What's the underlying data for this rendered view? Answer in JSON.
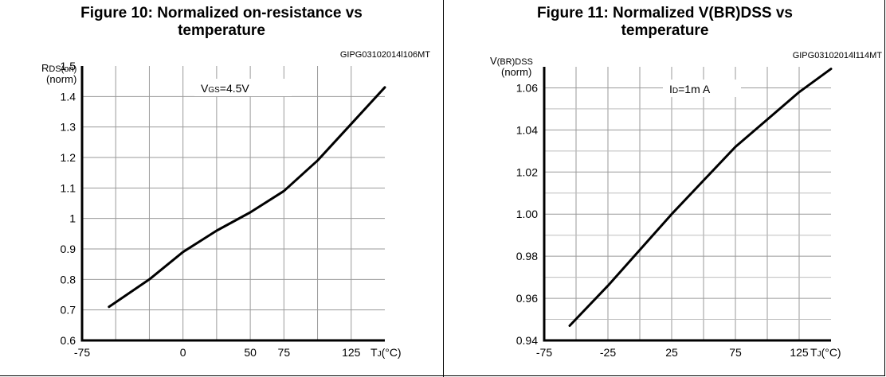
{
  "figures": [
    {
      "title_line1": "Figure 10: Normalized on-resistance vs",
      "title_line2": "temperature",
      "code": "GIPG03102014l106MT"
    },
    {
      "title_line1": "Figure 11: Normalized V(BR)DSS vs",
      "title_line2": "temperature",
      "code": "GIPG03102014l114MT"
    }
  ],
  "chart_data": [
    {
      "type": "line",
      "title": "Figure 10: Normalized on-resistance vs temperature",
      "ylabel": {
        "main": "R",
        "sub": "DS(on)",
        "unit": "(norm)"
      },
      "xlabel": {
        "main": "T",
        "sub": "J",
        "rest": "(°C)"
      },
      "annotation": {
        "main": "V",
        "sub": "GS",
        "rest": "=4.5V"
      },
      "ylim": [
        0.6,
        1.5
      ],
      "yticks": [
        {
          "v": 0.6,
          "label": "0.6"
        },
        {
          "v": 0.7,
          "label": "0.7"
        },
        {
          "v": 0.8,
          "label": "0.8"
        },
        {
          "v": 0.9,
          "label": "0.9"
        },
        {
          "v": 1.0,
          "label": "1"
        },
        {
          "v": 1.1,
          "label": "1.1"
        },
        {
          "v": 1.2,
          "label": "1.2"
        },
        {
          "v": 1.3,
          "label": "1.3"
        },
        {
          "v": 1.4,
          "label": "1.4"
        },
        {
          "v": 1.5,
          "label": "1.5"
        }
      ],
      "xlim": [
        -75,
        150
      ],
      "xticks": [
        {
          "v": -75,
          "label": "-75"
        },
        {
          "v": 0,
          "label": "0"
        },
        {
          "v": 50,
          "label": "50"
        },
        {
          "v": 75,
          "label": "75"
        },
        {
          "v": 125,
          "label": "125"
        }
      ],
      "xgrid": [
        -50,
        -25,
        0,
        25,
        50,
        75,
        100,
        125,
        150
      ],
      "grid": true,
      "series": [
        {
          "x": [
            -55,
            -25,
            0,
            25,
            50,
            75,
            100,
            125,
            150
          ],
          "y": [
            0.71,
            0.8,
            0.89,
            0.96,
            1.02,
            1.09,
            1.19,
            1.31,
            1.43
          ]
        }
      ]
    },
    {
      "type": "line",
      "title": "Figure 11: Normalized V(BR)DSS vs temperature",
      "ylabel": {
        "main": "V",
        "sub": "(BR)DSS",
        "unit": "(norm)"
      },
      "xlabel": {
        "main": "T",
        "sub": "J",
        "rest": "(°C)"
      },
      "annotation": {
        "main": "I",
        "sub": "D",
        "rest": "=1m A"
      },
      "ylim": [
        0.94,
        1.07
      ],
      "yticks": [
        {
          "v": 0.94,
          "label": "0.94"
        },
        {
          "v": 0.96,
          "label": "0.96"
        },
        {
          "v": 0.98,
          "label": "0.98"
        },
        {
          "v": 1.0,
          "label": "1.00"
        },
        {
          "v": 1.02,
          "label": "1.02"
        },
        {
          "v": 1.04,
          "label": "1.04"
        },
        {
          "v": 1.06,
          "label": "1.06"
        }
      ],
      "yminor": [
        0.95,
        0.97,
        0.99,
        1.01,
        1.03,
        1.05,
        1.07
      ],
      "xlim": [
        -75,
        150
      ],
      "xticks": [
        {
          "v": -75,
          "label": "-75"
        },
        {
          "v": -25,
          "label": "-25"
        },
        {
          "v": 25,
          "label": "25"
        },
        {
          "v": 75,
          "label": "75"
        },
        {
          "v": 125,
          "label": "125"
        }
      ],
      "xgrid": [
        -50,
        -25,
        0,
        25,
        50,
        75,
        100,
        125
      ],
      "grid": true,
      "series": [
        {
          "x": [
            -55,
            -25,
            0,
            25,
            50,
            75,
            100,
            125,
            150
          ],
          "y": [
            0.947,
            0.966,
            0.983,
            1.0,
            1.016,
            1.032,
            1.045,
            1.058,
            1.069
          ]
        }
      ]
    }
  ]
}
